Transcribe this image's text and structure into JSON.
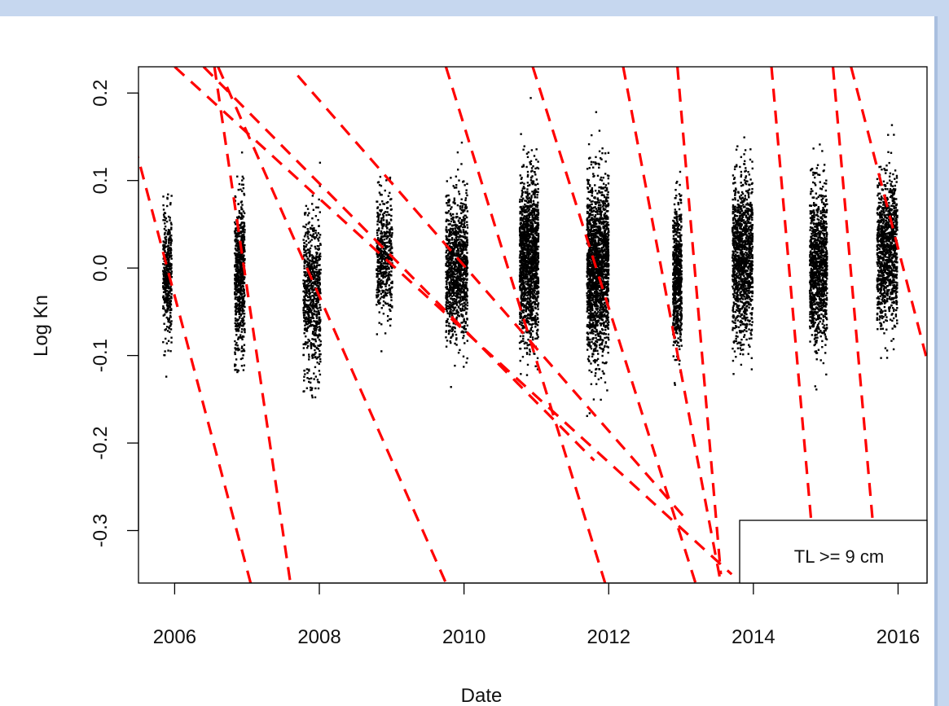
{
  "chart_data": {
    "type": "scatter",
    "xlabel": "Date",
    "ylabel": "Log Kn",
    "xlim": [
      2005.5,
      2016.4
    ],
    "ylim": [
      -0.36,
      0.23
    ],
    "x_ticks": [
      2006,
      2008,
      2010,
      2012,
      2014,
      2016
    ],
    "x_tick_labels": [
      "2006",
      "2008",
      "2010",
      "2012",
      "2014",
      "2016"
    ],
    "y_ticks": [
      0.2,
      0.1,
      0.0,
      -0.1,
      -0.2,
      -0.3
    ],
    "y_tick_labels": [
      "0.2",
      "0.1",
      "0.0",
      "-0.1",
      "-0.2",
      "-0.3"
    ],
    "legend_text": "TL >= 9 cm",
    "legend_position": "bottom-right",
    "colors": {
      "points": "#000000",
      "lines": "#ff0000"
    },
    "clusters": [
      {
        "x": 2005.9,
        "mean": -0.01,
        "spread": 0.035,
        "min": -0.125,
        "max": 0.085,
        "count": 420,
        "half_width": 0.06
      },
      {
        "x": 2006.9,
        "mean": -0.01,
        "spread": 0.045,
        "min": -0.12,
        "max": 0.16,
        "count": 650,
        "half_width": 0.07
      },
      {
        "x": 2007.9,
        "mean": -0.03,
        "spread": 0.045,
        "min": -0.15,
        "max": 0.16,
        "count": 700,
        "half_width": 0.12
      },
      {
        "x": 2008.9,
        "mean": 0.01,
        "spread": 0.035,
        "min": -0.125,
        "max": 0.11,
        "count": 520,
        "half_width": 0.11
      },
      {
        "x": 2009.9,
        "mean": 0.0,
        "spread": 0.04,
        "min": -0.145,
        "max": 0.145,
        "count": 1100,
        "half_width": 0.15
      },
      {
        "x": 2010.9,
        "mean": 0.01,
        "spread": 0.045,
        "min": -0.145,
        "max": 0.2,
        "count": 1400,
        "half_width": 0.13
      },
      {
        "x": 2011.85,
        "mean": 0.0,
        "spread": 0.05,
        "min": -0.175,
        "max": 0.215,
        "count": 1800,
        "half_width": 0.15
      },
      {
        "x": 2012.95,
        "mean": -0.01,
        "spread": 0.04,
        "min": -0.16,
        "max": 0.11,
        "count": 700,
        "half_width": 0.06
      },
      {
        "x": 2013.85,
        "mean": 0.01,
        "spread": 0.045,
        "min": -0.16,
        "max": 0.155,
        "count": 1200,
        "half_width": 0.14
      },
      {
        "x": 2014.9,
        "mean": 0.0,
        "spread": 0.045,
        "min": -0.14,
        "max": 0.16,
        "count": 1100,
        "half_width": 0.12
      },
      {
        "x": 2015.85,
        "mean": 0.02,
        "spread": 0.04,
        "min": -0.105,
        "max": 0.17,
        "count": 1100,
        "half_width": 0.14
      }
    ],
    "dashed_lines": [
      {
        "x1": 2005.45,
        "y1": 0.14,
        "x2": 2007.05,
        "y2": -0.36
      },
      {
        "x1": 2006.55,
        "y1": 0.23,
        "x2": 2007.6,
        "y2": -0.36
      },
      {
        "x1": 2006.6,
        "y1": 0.23,
        "x2": 2009.75,
        "y2": -0.36
      },
      {
        "x1": 2006.4,
        "y1": 0.23,
        "x2": 2011.8,
        "y2": -0.22
      },
      {
        "x1": 2007.7,
        "y1": 0.22,
        "x2": 2013.1,
        "y2": -0.29
      },
      {
        "x1": 2006.0,
        "y1": 0.23,
        "x2": 2013.7,
        "y2": -0.35
      },
      {
        "x1": 2009.75,
        "y1": 0.23,
        "x2": 2011.95,
        "y2": -0.36
      },
      {
        "x1": 2010.95,
        "y1": 0.23,
        "x2": 2013.2,
        "y2": -0.36
      },
      {
        "x1": 2012.2,
        "y1": 0.23,
        "x2": 2013.55,
        "y2": -0.36
      },
      {
        "x1": 2012.95,
        "y1": 0.23,
        "x2": 2013.55,
        "y2": -0.35
      },
      {
        "x1": 2014.25,
        "y1": 0.23,
        "x2": 2014.8,
        "y2": -0.29
      },
      {
        "x1": 2015.1,
        "y1": 0.23,
        "x2": 2015.65,
        "y2": -0.29
      },
      {
        "x1": 2015.35,
        "y1": 0.23,
        "x2": 2016.4,
        "y2": -0.105
      }
    ]
  }
}
